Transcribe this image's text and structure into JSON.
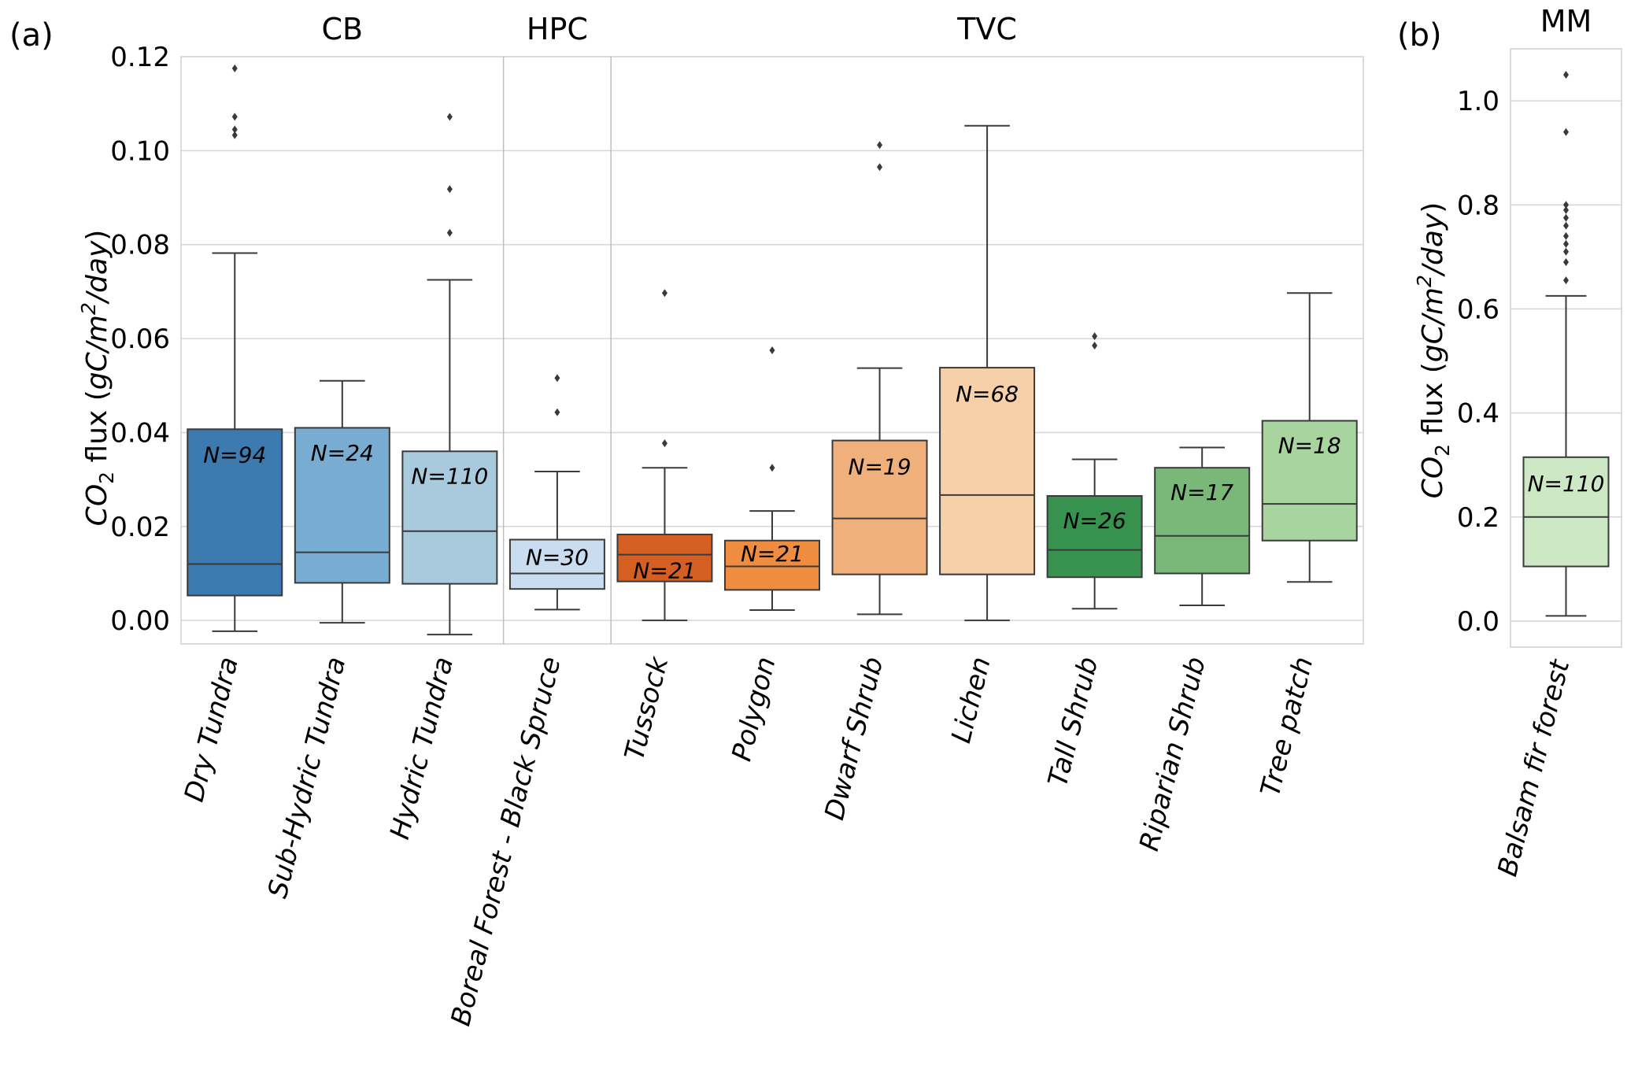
{
  "chart_data": [
    {
      "type": "box",
      "panel_label": "(a)",
      "ylabel": "CO2 flux (gC/m2/day)",
      "ylim": [
        -0.005,
        0.12
      ],
      "yticks": [
        "0.00",
        "0.02",
        "0.04",
        "0.06",
        "0.08",
        "0.10",
        "0.12"
      ],
      "ytick_values": [
        0.0,
        0.02,
        0.04,
        0.06,
        0.08,
        0.1,
        0.12
      ],
      "grid": true,
      "groups": [
        {
          "label": "CB",
          "categories": [
            "Dry Tundra",
            "Sub-Hydric Tundra",
            "Hydric Tundra"
          ]
        },
        {
          "label": "HPC",
          "categories": [
            "Boreal Forest - Black Spruce"
          ]
        },
        {
          "label": "TVC",
          "categories": [
            "Tussock",
            "Polygon",
            "Dwarf Shrub",
            "Lichen",
            "Tall Shrub",
            "Riparian Shrub",
            "Tree patch"
          ]
        }
      ],
      "boxes": [
        {
          "category": "Dry Tundra",
          "n_label": "N=94",
          "color": "#3c7ab0",
          "whisker_low": -0.0023,
          "q1": 0.0053,
          "median": 0.012,
          "q3": 0.0407,
          "whisker_high": 0.0782,
          "outliers": [
            0.1033,
            0.1045,
            0.1072,
            0.1175
          ],
          "label_value": 0.0353
        },
        {
          "category": "Sub-Hydric Tundra",
          "n_label": "N=24",
          "color": "#78acd0",
          "whisker_low": -0.0005,
          "q1": 0.008,
          "median": 0.0145,
          "q3": 0.041,
          "whisker_high": 0.051,
          "outliers": [],
          "label_value": 0.0357
        },
        {
          "category": "Hydric Tundra",
          "n_label": "N=110",
          "color": "#a9c9dd",
          "whisker_low": -0.003,
          "q1": 0.0078,
          "median": 0.019,
          "q3": 0.036,
          "whisker_high": 0.0725,
          "outliers": [
            0.0825,
            0.0918,
            0.1072
          ],
          "label_value": 0.0308
        },
        {
          "category": "Boreal Forest - Black Spruce",
          "n_label": "N=30",
          "color": "#cadcef",
          "whisker_low": 0.0023,
          "q1": 0.0067,
          "median": 0.01,
          "q3": 0.0172,
          "whisker_high": 0.0317,
          "outliers": [
            0.0443,
            0.0516
          ],
          "label_value": 0.0135
        },
        {
          "category": "Tussock",
          "n_label": "N=21",
          "color": "#d55e22",
          "whisker_low": 0.0,
          "q1": 0.0083,
          "median": 0.014,
          "q3": 0.0183,
          "whisker_high": 0.0325,
          "outliers": [
            0.0377,
            0.0697
          ],
          "label_value": 0.0107
        },
        {
          "category": "Polygon",
          "n_label": "N=21",
          "color": "#ef8c3f",
          "whisker_low": 0.0022,
          "q1": 0.0065,
          "median": 0.0115,
          "q3": 0.017,
          "whisker_high": 0.0233,
          "outliers": [
            0.0325,
            0.0575
          ],
          "label_value": 0.0143
        },
        {
          "category": "Dwarf Shrub",
          "n_label": "N=19",
          "color": "#efb07c",
          "whisker_low": 0.0013,
          "q1": 0.0098,
          "median": 0.0217,
          "q3": 0.0383,
          "whisker_high": 0.0537,
          "outliers": [
            0.0965,
            0.1012
          ],
          "label_value": 0.0328
        },
        {
          "category": "Lichen",
          "n_label": "N=68",
          "color": "#f5d0a8",
          "whisker_low": 0.0,
          "q1": 0.0098,
          "median": 0.0267,
          "q3": 0.0538,
          "whisker_high": 0.1053,
          "outliers": [],
          "label_value": 0.0483
        },
        {
          "category": "Tall Shrub",
          "n_label": "N=26",
          "color": "#37924f",
          "whisker_low": 0.0025,
          "q1": 0.0092,
          "median": 0.015,
          "q3": 0.0265,
          "whisker_high": 0.0343,
          "outliers": [
            0.0585,
            0.0605
          ],
          "label_value": 0.0213
        },
        {
          "category": "Riparian Shrub",
          "n_label": "N=17",
          "color": "#7ab87a",
          "whisker_low": 0.0032,
          "q1": 0.01,
          "median": 0.018,
          "q3": 0.0325,
          "whisker_high": 0.0368,
          "outliers": [],
          "label_value": 0.0273
        },
        {
          "category": "Tree patch",
          "n_label": "N=18",
          "color": "#a8d4a0",
          "whisker_low": 0.0082,
          "q1": 0.017,
          "median": 0.0248,
          "q3": 0.0425,
          "whisker_high": 0.0697,
          "outliers": [],
          "label_value": 0.0373
        }
      ]
    },
    {
      "type": "box",
      "panel_label": "(b)",
      "ylabel": "CO2 flux (gC/m2/day)",
      "ylim": [
        -0.05,
        1.1
      ],
      "yticks": [
        "0.0",
        "0.2",
        "0.4",
        "0.6",
        "0.8",
        "1.0"
      ],
      "ytick_values": [
        0.0,
        0.2,
        0.4,
        0.6,
        0.8,
        1.0
      ],
      "grid": true,
      "groups": [
        {
          "label": "MM",
          "categories": [
            "Balsam fir forest"
          ]
        }
      ],
      "boxes": [
        {
          "category": "Balsam fir forest",
          "n_label": "N=110",
          "color": "#cce8c4",
          "whisker_low": 0.01,
          "q1": 0.105,
          "median": 0.2,
          "q3": 0.315,
          "whisker_high": 0.625,
          "outliers": [
            0.655,
            0.69,
            0.71,
            0.725,
            0.74,
            0.76,
            0.775,
            0.79,
            0.8,
            0.94,
            1.05
          ],
          "label_value": 0.265
        }
      ]
    }
  ]
}
